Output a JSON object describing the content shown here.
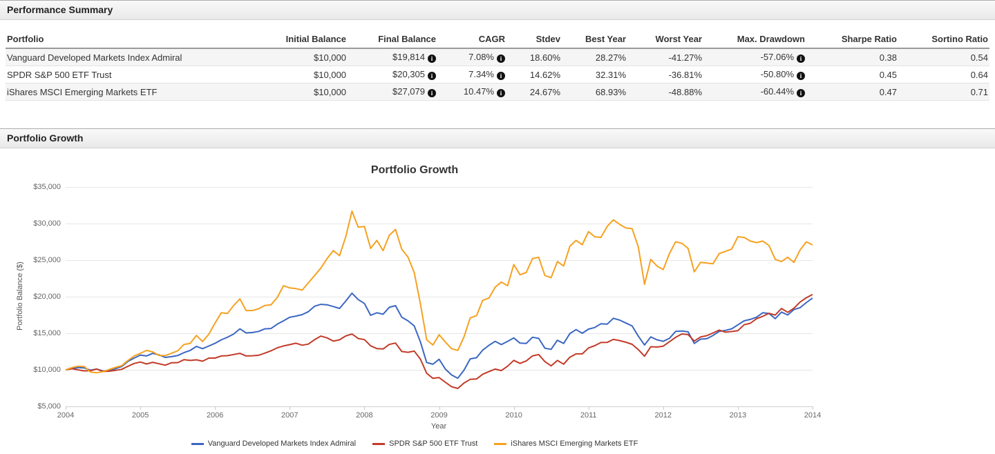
{
  "sections": {
    "performance_title": "Performance Summary",
    "growth_title": "Portfolio Growth"
  },
  "performance_table": {
    "columns": [
      "Portfolio",
      "Initial Balance",
      "Final Balance",
      "CAGR",
      "Stdev",
      "Best Year",
      "Worst Year",
      "Max. Drawdown",
      "Sharpe Ratio",
      "Sortino Ratio"
    ],
    "info_icon_columns": [
      "final",
      "cagr",
      "maxdd"
    ],
    "info_icon_glyph": "i",
    "rows": [
      {
        "portfolio": "Vanguard Developed Markets Index Admiral",
        "initial": "$10,000",
        "final": "$19,814",
        "cagr": "7.08%",
        "stdev": "18.60%",
        "best": "28.27%",
        "worst": "-41.27%",
        "maxdd": "-57.06%",
        "sharpe": "0.38",
        "sortino": "0.54"
      },
      {
        "portfolio": "SPDR S&P 500 ETF Trust",
        "initial": "$10,000",
        "final": "$20,305",
        "cagr": "7.34%",
        "stdev": "14.62%",
        "best": "32.31%",
        "worst": "-36.81%",
        "maxdd": "-50.80%",
        "sharpe": "0.45",
        "sortino": "0.64"
      },
      {
        "portfolio": "iShares MSCI Emerging Markets ETF",
        "initial": "$10,000",
        "final": "$27,079",
        "cagr": "10.47%",
        "stdev": "24.67%",
        "best": "68.93%",
        "worst": "-48.88%",
        "maxdd": "-60.44%",
        "sharpe": "0.47",
        "sortino": "0.71"
      }
    ]
  },
  "chart_data": {
    "type": "line",
    "title": "Portfolio Growth",
    "xlabel": "Year",
    "ylabel": "Portfolio Balance ($)",
    "x_ticks": [
      "2004",
      "2005",
      "2006",
      "2007",
      "2008",
      "2009",
      "2010",
      "2011",
      "2012",
      "2013",
      "2014"
    ],
    "y_ticks": [
      35000,
      30000,
      25000,
      20000,
      15000,
      10000,
      5000
    ],
    "y_tick_labels": [
      "$35,000",
      "$30,000",
      "$25,000",
      "$20,000",
      "$15,000",
      "$10,000",
      "$5,000"
    ],
    "ylim": [
      5000,
      35000
    ],
    "xlim": [
      2004,
      2014
    ],
    "grid": "horizontal-only",
    "legend_position": "bottom",
    "points_per_series": 121,
    "x_unit": "month",
    "series": [
      {
        "name": "Vanguard Developed Markets Index Admiral",
        "color": "#3a66c2",
        "values": [
          10000,
          10150,
          10300,
          10250,
          9950,
          10100,
          9850,
          9900,
          10150,
          10450,
          11150,
          11600,
          12020,
          11900,
          12250,
          12050,
          11700,
          11800,
          11950,
          12350,
          12650,
          13200,
          12900,
          13250,
          13620,
          14100,
          14450,
          14900,
          15600,
          15050,
          15100,
          15250,
          15600,
          15650,
          16250,
          16700,
          17190,
          17350,
          17550,
          17950,
          18700,
          18950,
          18900,
          18650,
          18400,
          19400,
          20480,
          19600,
          19080,
          17450,
          17800,
          17600,
          18550,
          18770,
          17200,
          16700,
          16000,
          13800,
          11000,
          10760,
          11440,
          10100,
          9300,
          8850,
          9950,
          11500,
          11650,
          12700,
          13350,
          13900,
          13450,
          13900,
          14360,
          13650,
          13600,
          14450,
          14300,
          12950,
          12800,
          14050,
          13600,
          14950,
          15500,
          15000,
          15570,
          15780,
          16300,
          16250,
          17050,
          16800,
          16400,
          16000,
          14600,
          13400,
          14500,
          14100,
          13900,
          14300,
          15250,
          15300,
          15200,
          13600,
          14200,
          14250,
          14700,
          15250,
          15400,
          15600,
          16150,
          16700,
          16900,
          17200,
          17800,
          17700,
          17000,
          17900,
          17500,
          18250,
          18500,
          19200,
          19814
        ]
      },
      {
        "name": "SPDR S&P 500 ETF Trust",
        "color": "#c23a27",
        "values": [
          10000,
          10150,
          10000,
          9850,
          9900,
          10100,
          9770,
          9810,
          9920,
          10070,
          10480,
          10870,
          11070,
          10800,
          11030,
          10830,
          10630,
          10960,
          10980,
          11390,
          11280,
          11370,
          11180,
          11600,
          11600,
          11900,
          11930,
          12090,
          12250,
          11900,
          11920,
          11990,
          12280,
          12600,
          13010,
          13260,
          13440,
          13640,
          13370,
          13520,
          14120,
          14610,
          14370,
          13920,
          14100,
          14630,
          14900,
          14280,
          14130,
          13280,
          12910,
          12850,
          13470,
          13660,
          12510,
          12400,
          12570,
          11450,
          9530,
          8840,
          8930,
          8300,
          7700,
          7450,
          8200,
          8700,
          8750,
          9400,
          9750,
          10100,
          9900,
          10500,
          11290,
          10880,
          11220,
          11900,
          12090,
          11120,
          10540,
          11280,
          10770,
          11730,
          12180,
          12180,
          12990,
          13300,
          13740,
          13750,
          14160,
          14000,
          13770,
          13490,
          12760,
          11860,
          13160,
          13110,
          13240,
          13840,
          14440,
          14910,
          14820,
          13930,
          14500,
          14670,
          15040,
          15430,
          15150,
          15240,
          15360,
          16160,
          16370,
          16990,
          17320,
          17730,
          17490,
          18390,
          17860,
          18420,
          19270,
          19860,
          20305
        ]
      },
      {
        "name": "iShares MSCI Emerging Markets ETF",
        "color": "#f6a11f",
        "values": [
          10000,
          10300,
          10500,
          10450,
          9700,
          9600,
          9750,
          10050,
          10330,
          10570,
          11270,
          11900,
          12250,
          12650,
          12450,
          11970,
          11940,
          12250,
          12600,
          13470,
          13600,
          14700,
          13870,
          14870,
          16390,
          17800,
          17700,
          18800,
          19700,
          18100,
          18100,
          18350,
          18800,
          18900,
          19900,
          21500,
          21200,
          21100,
          20900,
          21900,
          22900,
          23900,
          25200,
          26300,
          25600,
          28200,
          31700,
          29500,
          29600,
          26600,
          27700,
          26300,
          28400,
          29200,
          26500,
          25400,
          23300,
          19000,
          14100,
          13400,
          14800,
          13800,
          12900,
          12650,
          14500,
          17100,
          17400,
          19500,
          19800,
          21300,
          22000,
          21500,
          24400,
          23000,
          23300,
          25200,
          25400,
          22900,
          22600,
          24800,
          24200,
          26900,
          27700,
          27100,
          28900,
          28200,
          28100,
          29600,
          30500,
          29900,
          29400,
          29300,
          26800,
          21700,
          25100,
          24200,
          23700,
          25900,
          27500,
          27300,
          26600,
          23400,
          24700,
          24600,
          24500,
          25900,
          26200,
          26500,
          28200,
          28100,
          27600,
          27400,
          27600,
          27000,
          25100,
          24800,
          25400,
          24700,
          26400,
          27500,
          27079
        ]
      }
    ]
  }
}
